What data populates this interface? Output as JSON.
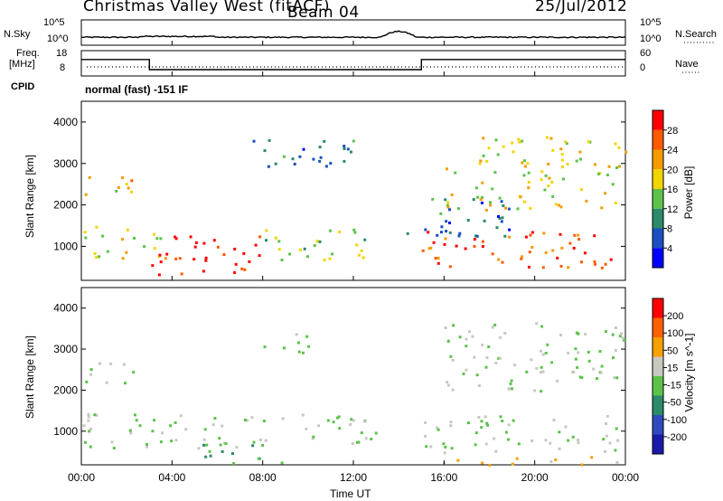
{
  "header": {
    "station": "Christmas Valley West (fitACF)",
    "beam": "Beam 04",
    "date": "25/Jul/2012"
  },
  "top_panel": {
    "nsky_label": "N.Sky",
    "nsky_ticks": [
      "10^5",
      "10^0"
    ],
    "nsearch_label": "N.Search",
    "nsearch_ticks": [
      "10^5",
      "10^0"
    ]
  },
  "freq_panel": {
    "freq_label": "Freq.",
    "freq_unit": "[MHz]",
    "freq_ticks": [
      "18",
      "8"
    ],
    "nave_label": "Nave",
    "nave_ticks": [
      "60",
      "0"
    ]
  },
  "cpid_panel": {
    "label": "CPID",
    "text": "normal (fast) -151 IF"
  },
  "power_panel": {
    "ylabel": "Slant Range [km]",
    "yticks": [
      "4000",
      "3000",
      "2000",
      "1000"
    ],
    "colorbar_label": "Power [dB]",
    "colorbar_ticks": [
      "28",
      "24",
      "20",
      "16",
      "12",
      "8",
      "4"
    ],
    "colors": [
      "#0000ff",
      "#1a4fc0",
      "#2a8a6a",
      "#5cc24a",
      "#f2d400",
      "#f59a00",
      "#ff5a00",
      "#ff0000"
    ]
  },
  "velocity_panel": {
    "ylabel": "Slant Range [km]",
    "yticks": [
      "4000",
      "3000",
      "2000",
      "1000"
    ],
    "colorbar_label": "Velocity [m s^-1]",
    "colorbar_ticks": [
      "200",
      "100",
      "50",
      "15",
      "-15",
      "-50",
      "-100",
      "-200"
    ],
    "colors": [
      "#1a1aaa",
      "#2f4ac0",
      "#2a8a6a",
      "#5cc24a",
      "#c8c8c0",
      "#f5a000",
      "#ff6000",
      "#ff0000"
    ]
  },
  "x_axis": {
    "xlabel": "Time UT",
    "xticks": [
      "00:00",
      "04:00",
      "08:00",
      "12:00",
      "16:00",
      "20:00",
      "00:00"
    ]
  },
  "chart_data": {
    "type": "heatmap",
    "title": "Christmas Valley West (fitACF) Beam 04 25/Jul/2012",
    "xlabel": "Time UT",
    "ylabel": "Slant Range [km]",
    "xlim": [
      0,
      24
    ],
    "ylim": [
      180,
      4500
    ],
    "series": [
      {
        "name": "Power [dB]",
        "clim": [
          0,
          32
        ],
        "regions": [
          {
            "t": [
              0,
              3
            ],
            "range": [
              2200,
              2700
            ],
            "power": 20
          },
          {
            "t": [
              0,
              4
            ],
            "range": [
              700,
              1500
            ],
            "power": 18
          },
          {
            "t": [
              3,
              8
            ],
            "range": [
              300,
              1300
            ],
            "power": 30
          },
          {
            "t": [
              8,
              13
            ],
            "range": [
              700,
              1500
            ],
            "power": 14
          },
          {
            "t": [
              7.5,
              12
            ],
            "range": [
              2800,
              3600
            ],
            "power": 8
          },
          {
            "t": [
              15,
              24
            ],
            "range": [
              500,
              1400
            ],
            "power": 26
          },
          {
            "t": [
              16,
              24
            ],
            "range": [
              1900,
              3700
            ],
            "power": 18
          },
          {
            "t": [
              14,
              19
            ],
            "range": [
              1200,
              2200
            ],
            "power": 8
          }
        ]
      },
      {
        "name": "Velocity [m s^-1]",
        "clim": [
          -250,
          250
        ],
        "regions": [
          {
            "t": [
              0,
              3
            ],
            "range": [
              2200,
              2700
            ],
            "velocity": 0
          },
          {
            "t": [
              0,
              8
            ],
            "range": [
              600,
              1500
            ],
            "velocity": 0
          },
          {
            "t": [
              5,
              9
            ],
            "range": [
              200,
              700
            ],
            "velocity": -60
          },
          {
            "t": [
              8,
              13
            ],
            "range": [
              700,
              1500
            ],
            "velocity": 0
          },
          {
            "t": [
              8,
              10
            ],
            "range": [
              2900,
              3500
            ],
            "velocity": -20
          },
          {
            "t": [
              15,
              24
            ],
            "range": [
              500,
              1400
            ],
            "velocity": 0
          },
          {
            "t": [
              15,
              24
            ],
            "range": [
              200,
              400
            ],
            "velocity": 60
          },
          {
            "t": [
              16,
              24
            ],
            "range": [
              2000,
              3700
            ],
            "velocity": 0
          }
        ]
      }
    ],
    "noise_sky_level": 3.0,
    "frequency_mhz": [
      {
        "t": [
          0,
          3
        ],
        "value": 14.5
      },
      {
        "t": [
          3,
          15
        ],
        "value": 10.5
      },
      {
        "t": [
          15,
          24
        ],
        "value": 14.5
      }
    ]
  }
}
